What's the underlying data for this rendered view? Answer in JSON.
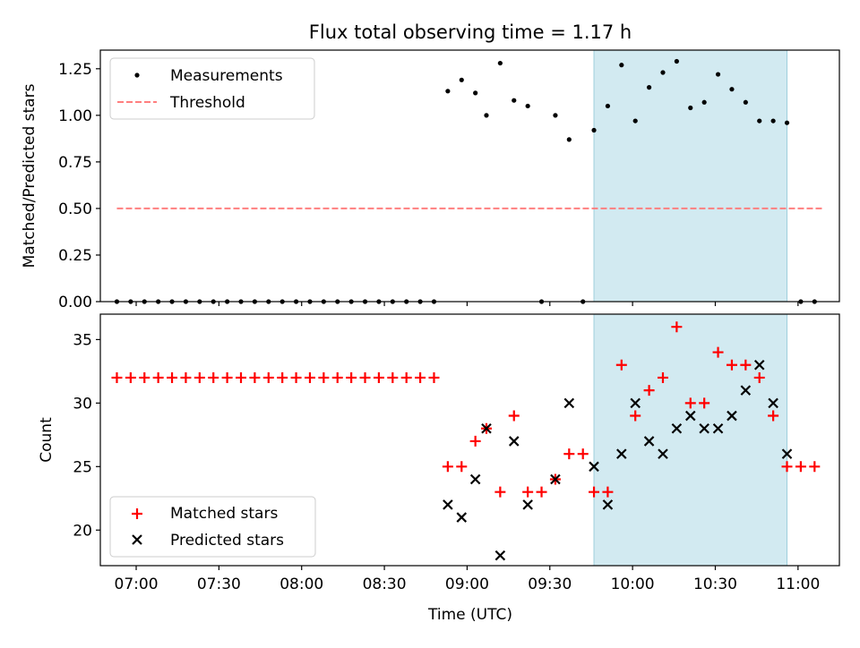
{
  "chart_data": {
    "type": "scatter",
    "title": "Flux total observing time = 1.17 h",
    "xlabel": "Time (UTC)",
    "x_ticks": [
      "07:00",
      "07:30",
      "08:00",
      "08:30",
      "09:00",
      "09:30",
      "10:00",
      "10:30",
      "11:00"
    ],
    "x_range": [
      "06:47",
      "11:15"
    ],
    "highlight_span": [
      "09:46",
      "10:56"
    ],
    "highlight_color": "#add8e6",
    "panels": [
      {
        "ylabel": "Matched/Predicted stars",
        "ylim": [
          0,
          1.35
        ],
        "y_ticks": [
          "0.00",
          "0.25",
          "0.50",
          "0.75",
          "1.00",
          "1.25"
        ],
        "legend_position": "top-left",
        "series": [
          {
            "name": "Measurements",
            "marker": "dot",
            "color": "#000000",
            "points": [
              {
                "x": "06:53",
                "y": 0
              },
              {
                "x": "06:58",
                "y": 0
              },
              {
                "x": "07:03",
                "y": 0
              },
              {
                "x": "07:08",
                "y": 0
              },
              {
                "x": "07:13",
                "y": 0
              },
              {
                "x": "07:18",
                "y": 0
              },
              {
                "x": "07:23",
                "y": 0
              },
              {
                "x": "07:28",
                "y": 0
              },
              {
                "x": "07:33",
                "y": 0
              },
              {
                "x": "07:38",
                "y": 0
              },
              {
                "x": "07:43",
                "y": 0
              },
              {
                "x": "07:48",
                "y": 0
              },
              {
                "x": "07:53",
                "y": 0
              },
              {
                "x": "07:58",
                "y": 0
              },
              {
                "x": "08:03",
                "y": 0
              },
              {
                "x": "08:08",
                "y": 0
              },
              {
                "x": "08:13",
                "y": 0
              },
              {
                "x": "08:18",
                "y": 0
              },
              {
                "x": "08:23",
                "y": 0
              },
              {
                "x": "08:28",
                "y": 0
              },
              {
                "x": "08:33",
                "y": 0
              },
              {
                "x": "08:38",
                "y": 0
              },
              {
                "x": "08:43",
                "y": 0
              },
              {
                "x": "08:48",
                "y": 0
              },
              {
                "x": "08:53",
                "y": 1.13
              },
              {
                "x": "08:58",
                "y": 1.19
              },
              {
                "x": "09:03",
                "y": 1.12
              },
              {
                "x": "09:07",
                "y": 1.0
              },
              {
                "x": "09:12",
                "y": 1.28
              },
              {
                "x": "09:17",
                "y": 1.08
              },
              {
                "x": "09:22",
                "y": 1.05
              },
              {
                "x": "09:27",
                "y": 0
              },
              {
                "x": "09:32",
                "y": 1.0
              },
              {
                "x": "09:37",
                "y": 0.87
              },
              {
                "x": "09:42",
                "y": 0
              },
              {
                "x": "09:46",
                "y": 0.92
              },
              {
                "x": "09:51",
                "y": 1.05
              },
              {
                "x": "09:56",
                "y": 1.27
              },
              {
                "x": "10:01",
                "y": 0.97
              },
              {
                "x": "10:06",
                "y": 1.15
              },
              {
                "x": "10:11",
                "y": 1.23
              },
              {
                "x": "10:16",
                "y": 1.29
              },
              {
                "x": "10:21",
                "y": 1.04
              },
              {
                "x": "10:26",
                "y": 1.07
              },
              {
                "x": "10:31",
                "y": 1.22
              },
              {
                "x": "10:36",
                "y": 1.14
              },
              {
                "x": "10:41",
                "y": 1.07
              },
              {
                "x": "10:46",
                "y": 0.97
              },
              {
                "x": "10:51",
                "y": 0.97
              },
              {
                "x": "10:56",
                "y": 0.96
              },
              {
                "x": "11:01",
                "y": 0
              },
              {
                "x": "11:06",
                "y": 0
              }
            ]
          },
          {
            "name": "Threshold",
            "marker": "dashed-line",
            "color": "#ff7f7f",
            "points": [
              {
                "x": "06:53",
                "y": 0.5
              },
              {
                "x": "11:09",
                "y": 0.5
              }
            ]
          }
        ]
      },
      {
        "ylabel": "Count",
        "ylim": [
          17.2,
          37.0
        ],
        "y_ticks": [
          "20",
          "25",
          "30",
          "35"
        ],
        "legend_position": "bottom-left",
        "series": [
          {
            "name": "Matched stars",
            "marker": "plus",
            "color": "#ff0000",
            "points": [
              {
                "x": "06:53",
                "y": 32
              },
              {
                "x": "06:58",
                "y": 32
              },
              {
                "x": "07:03",
                "y": 32
              },
              {
                "x": "07:08",
                "y": 32
              },
              {
                "x": "07:13",
                "y": 32
              },
              {
                "x": "07:18",
                "y": 32
              },
              {
                "x": "07:23",
                "y": 32
              },
              {
                "x": "07:28",
                "y": 32
              },
              {
                "x": "07:33",
                "y": 32
              },
              {
                "x": "07:38",
                "y": 32
              },
              {
                "x": "07:43",
                "y": 32
              },
              {
                "x": "07:48",
                "y": 32
              },
              {
                "x": "07:53",
                "y": 32
              },
              {
                "x": "07:58",
                "y": 32
              },
              {
                "x": "08:03",
                "y": 32
              },
              {
                "x": "08:08",
                "y": 32
              },
              {
                "x": "08:13",
                "y": 32
              },
              {
                "x": "08:18",
                "y": 32
              },
              {
                "x": "08:23",
                "y": 32
              },
              {
                "x": "08:28",
                "y": 32
              },
              {
                "x": "08:33",
                "y": 32
              },
              {
                "x": "08:38",
                "y": 32
              },
              {
                "x": "08:43",
                "y": 32
              },
              {
                "x": "08:48",
                "y": 32
              },
              {
                "x": "08:53",
                "y": 25
              },
              {
                "x": "08:58",
                "y": 25
              },
              {
                "x": "09:03",
                "y": 27
              },
              {
                "x": "09:07",
                "y": 28
              },
              {
                "x": "09:12",
                "y": 23
              },
              {
                "x": "09:17",
                "y": 29
              },
              {
                "x": "09:22",
                "y": 23
              },
              {
                "x": "09:27",
                "y": 23
              },
              {
                "x": "09:32",
                "y": 24
              },
              {
                "x": "09:37",
                "y": 26
              },
              {
                "x": "09:42",
                "y": 26
              },
              {
                "x": "09:46",
                "y": 23
              },
              {
                "x": "09:51",
                "y": 23
              },
              {
                "x": "09:56",
                "y": 33
              },
              {
                "x": "10:01",
                "y": 29
              },
              {
                "x": "10:06",
                "y": 31
              },
              {
                "x": "10:11",
                "y": 32
              },
              {
                "x": "10:16",
                "y": 36
              },
              {
                "x": "10:21",
                "y": 30
              },
              {
                "x": "10:26",
                "y": 30
              },
              {
                "x": "10:31",
                "y": 34
              },
              {
                "x": "10:36",
                "y": 33
              },
              {
                "x": "10:41",
                "y": 33
              },
              {
                "x": "10:46",
                "y": 32
              },
              {
                "x": "10:51",
                "y": 29
              },
              {
                "x": "10:56",
                "y": 25
              },
              {
                "x": "11:01",
                "y": 25
              },
              {
                "x": "11:06",
                "y": 25
              }
            ]
          },
          {
            "name": "Predicted stars",
            "marker": "x",
            "color": "#000000",
            "points": [
              {
                "x": "08:53",
                "y": 22
              },
              {
                "x": "08:58",
                "y": 21
              },
              {
                "x": "09:03",
                "y": 24
              },
              {
                "x": "09:07",
                "y": 28
              },
              {
                "x": "09:12",
                "y": 18
              },
              {
                "x": "09:17",
                "y": 27
              },
              {
                "x": "09:22",
                "y": 22
              },
              {
                "x": "09:32",
                "y": 24
              },
              {
                "x": "09:37",
                "y": 30
              },
              {
                "x": "09:46",
                "y": 25
              },
              {
                "x": "09:51",
                "y": 22
              },
              {
                "x": "09:56",
                "y": 26
              },
              {
                "x": "10:01",
                "y": 30
              },
              {
                "x": "10:06",
                "y": 27
              },
              {
                "x": "10:11",
                "y": 26
              },
              {
                "x": "10:16",
                "y": 28
              },
              {
                "x": "10:21",
                "y": 29
              },
              {
                "x": "10:26",
                "y": 28
              },
              {
                "x": "10:31",
                "y": 28
              },
              {
                "x": "10:36",
                "y": 29
              },
              {
                "x": "10:41",
                "y": 31
              },
              {
                "x": "10:46",
                "y": 33
              },
              {
                "x": "10:51",
                "y": 30
              },
              {
                "x": "10:56",
                "y": 26
              }
            ]
          }
        ]
      }
    ]
  }
}
